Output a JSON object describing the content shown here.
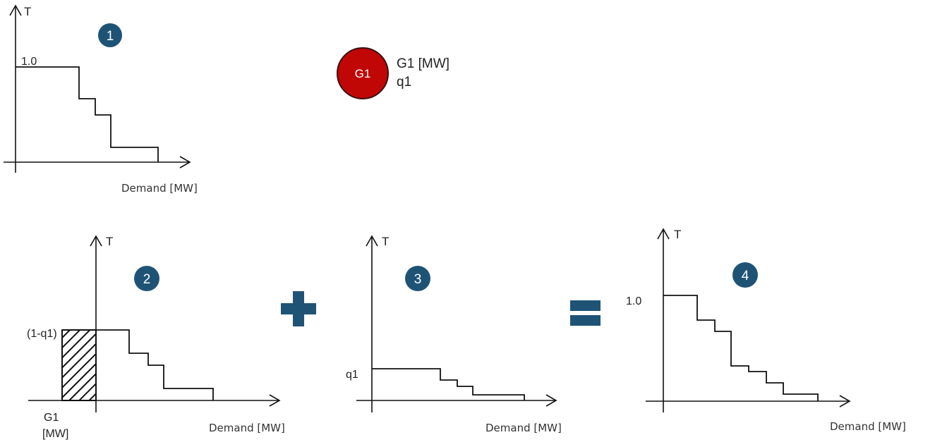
{
  "colors": {
    "badge": "#1f5376",
    "operator": "#1f5376",
    "generator_fill": "#c10606",
    "generator_stroke": "#3a1010",
    "line": "#111111"
  },
  "panel1": {
    "step": "1",
    "y_axis_label": "T",
    "y_tick_label": "1.0",
    "x_axis_label": "Demand [MW]"
  },
  "generator": {
    "circle_label": "G1",
    "capacity_label": "G1 [MW]",
    "probability_label": "q1"
  },
  "panel2": {
    "step": "2",
    "y_axis_label": "T",
    "y_tick_label": "(1-q1)",
    "shift_label_line1": "G1",
    "shift_label_line2": "[MW]",
    "x_axis_label": "Demand [MW]"
  },
  "panel3": {
    "step": "3",
    "y_axis_label": "T",
    "y_tick_label": "q1",
    "x_axis_label": "Demand [MW]"
  },
  "panel4": {
    "step": "4",
    "y_axis_label": "T",
    "y_tick_label": "1.0",
    "x_axis_label": "Demand [MW]"
  },
  "operators": {
    "plus_icon": "plus-icon",
    "equals_icon": "equals-icon"
  }
}
